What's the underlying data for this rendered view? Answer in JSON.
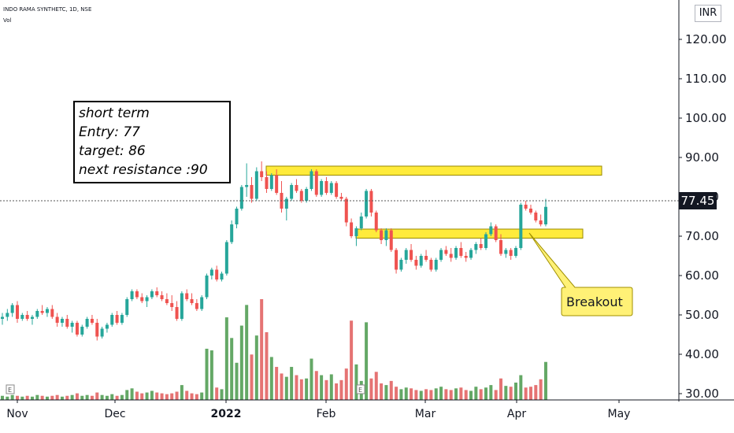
{
  "header": {
    "symbol": "INDO RAMA SYNTHETC, 1D, NSE",
    "volume_label": "Vol",
    "currency": "INR"
  },
  "colors": {
    "up": "#26a69a",
    "down": "#ef5350",
    "volume_up": "#64a866",
    "volume_down": "#e57373",
    "zone_fill": "#ffeb3b",
    "current_price_bg": "#131722"
  },
  "note": {
    "lines": [
      "short term",
      "Entry: 77",
      "target: 86",
      "next resistance :90"
    ]
  },
  "callout": {
    "text": "Breakout"
  },
  "current_price": {
    "label": "77.45",
    "value": 77.45
  },
  "chart_data": {
    "type": "candlestick",
    "y_axis": {
      "ylim": [
        30,
        125
      ],
      "ticks": [
        "30.00",
        "40.00",
        "50.00",
        "60.00",
        "70.00",
        "80.00",
        "90.00",
        "100.00",
        "110.00",
        "120.00"
      ]
    },
    "x_axis": {
      "labels": [
        "Nov",
        "Dec",
        "2022",
        "Feb",
        "Mar",
        "Apr",
        "May"
      ]
    },
    "zones": [
      {
        "name": "resistance",
        "low": 85.5,
        "high": 87.8
      },
      {
        "name": "support",
        "low": 69.5,
        "high": 71.8
      }
    ],
    "candles": [
      [
        49.0,
        50.5,
        47.5,
        49.5
      ],
      [
        49.5,
        51.5,
        48.5,
        50.5
      ],
      [
        50.5,
        53.0,
        49.5,
        52.5
      ],
      [
        52.5,
        53.5,
        48.0,
        49.0
      ],
      [
        49.0,
        50.5,
        48.5,
        50.0
      ],
      [
        50.0,
        51.0,
        48.5,
        49.0
      ],
      [
        49.0,
        50.0,
        47.5,
        49.5
      ],
      [
        49.5,
        51.5,
        49.0,
        51.0
      ],
      [
        51.0,
        52.5,
        50.0,
        50.5
      ],
      [
        50.5,
        52.0,
        49.5,
        51.5
      ],
      [
        51.5,
        52.5,
        49.0,
        49.5
      ],
      [
        49.5,
        50.5,
        47.0,
        48.0
      ],
      [
        48.0,
        49.5,
        47.0,
        49.0
      ],
      [
        49.0,
        50.0,
        46.5,
        47.0
      ],
      [
        47.0,
        48.5,
        45.5,
        48.0
      ],
      [
        48.0,
        48.5,
        44.5,
        45.0
      ],
      [
        45.0,
        47.5,
        44.5,
        47.0
      ],
      [
        47.0,
        49.5,
        46.5,
        49.0
      ],
      [
        49.0,
        50.0,
        47.5,
        48.0
      ],
      [
        48.0,
        49.0,
        43.5,
        44.5
      ],
      [
        44.5,
        47.0,
        44.0,
        46.5
      ],
      [
        46.5,
        48.0,
        45.5,
        47.5
      ],
      [
        47.5,
        50.5,
        47.0,
        50.0
      ],
      [
        50.0,
        51.0,
        47.5,
        48.0
      ],
      [
        48.0,
        50.5,
        47.5,
        50.0
      ],
      [
        50.0,
        54.5,
        49.5,
        54.0
      ],
      [
        54.0,
        56.5,
        53.5,
        56.0
      ],
      [
        56.0,
        56.5,
        54.0,
        54.5
      ],
      [
        54.5,
        55.5,
        53.0,
        53.5
      ],
      [
        53.5,
        55.0,
        52.0,
        54.5
      ],
      [
        54.5,
        56.5,
        54.0,
        56.0
      ],
      [
        56.0,
        57.0,
        54.5,
        55.0
      ],
      [
        55.0,
        56.0,
        53.5,
        54.0
      ],
      [
        54.0,
        55.5,
        52.5,
        53.0
      ],
      [
        53.0,
        55.0,
        51.0,
        52.0
      ],
      [
        52.0,
        53.5,
        48.5,
        49.0
      ],
      [
        49.0,
        56.0,
        48.5,
        55.5
      ],
      [
        55.5,
        56.5,
        53.5,
        54.0
      ],
      [
        54.0,
        55.5,
        52.5,
        53.0
      ],
      [
        53.0,
        54.0,
        51.0,
        51.5
      ],
      [
        51.5,
        55.0,
        51.0,
        54.5
      ],
      [
        54.5,
        60.5,
        54.0,
        60.0
      ],
      [
        60.0,
        62.0,
        59.0,
        61.5
      ],
      [
        61.5,
        62.5,
        58.5,
        59.0
      ],
      [
        59.0,
        61.0,
        58.5,
        60.5
      ],
      [
        60.5,
        69.0,
        60.0,
        68.5
      ],
      [
        68.5,
        74.0,
        68.0,
        73.0
      ],
      [
        73.0,
        77.5,
        72.0,
        77.0
      ],
      [
        77.0,
        83.0,
        76.5,
        82.5
      ],
      [
        82.5,
        88.5,
        80.0,
        83.0
      ],
      [
        83.0,
        85.0,
        78.5,
        79.5
      ],
      [
        79.5,
        87.5,
        79.0,
        86.5
      ],
      [
        86.5,
        89.0,
        84.0,
        85.0
      ],
      [
        85.0,
        86.5,
        81.0,
        82.0
      ],
      [
        82.0,
        86.0,
        81.5,
        85.5
      ],
      [
        85.5,
        87.0,
        80.5,
        81.0
      ],
      [
        81.0,
        84.0,
        76.0,
        77.0
      ],
      [
        77.0,
        80.0,
        74.0,
        79.5
      ],
      [
        79.5,
        83.5,
        79.0,
        83.0
      ],
      [
        83.0,
        84.5,
        81.0,
        81.5
      ],
      [
        81.5,
        82.0,
        78.5,
        79.0
      ],
      [
        79.0,
        82.5,
        78.5,
        82.0
      ],
      [
        82.0,
        87.0,
        81.5,
        86.5
      ],
      [
        86.5,
        87.0,
        80.0,
        80.5
      ],
      [
        80.5,
        84.5,
        80.0,
        84.0
      ],
      [
        84.0,
        85.0,
        80.5,
        81.0
      ],
      [
        81.0,
        84.0,
        80.5,
        83.5
      ],
      [
        83.5,
        84.0,
        79.5,
        80.0
      ],
      [
        80.0,
        81.0,
        79.0,
        79.5
      ],
      [
        79.5,
        80.0,
        72.5,
        73.5
      ],
      [
        73.5,
        74.5,
        69.5,
        70.0
      ],
      [
        70.0,
        72.5,
        67.5,
        72.0
      ],
      [
        72.0,
        76.0,
        71.5,
        75.0
      ],
      [
        75.0,
        82.0,
        74.5,
        81.5
      ],
      [
        81.5,
        82.0,
        75.0,
        76.0
      ],
      [
        76.0,
        76.5,
        71.0,
        71.5
      ],
      [
        71.5,
        72.0,
        68.0,
        69.0
      ],
      [
        69.0,
        72.0,
        67.5,
        71.5
      ],
      [
        71.5,
        72.0,
        66.0,
        66.5
      ],
      [
        66.5,
        67.0,
        60.5,
        61.5
      ],
      [
        61.5,
        64.5,
        61.0,
        64.0
      ],
      [
        64.0,
        67.0,
        63.0,
        66.5
      ],
      [
        66.5,
        68.0,
        63.5,
        64.0
      ],
      [
        64.0,
        65.0,
        61.5,
        62.5
      ],
      [
        62.5,
        65.5,
        62.0,
        65.0
      ],
      [
        65.0,
        66.5,
        63.5,
        64.0
      ],
      [
        64.0,
        64.5,
        61.0,
        61.5
      ],
      [
        61.5,
        64.5,
        61.0,
        64.0
      ],
      [
        64.0,
        67.0,
        63.5,
        66.5
      ],
      [
        66.5,
        67.5,
        65.0,
        65.5
      ],
      [
        65.5,
        67.0,
        63.5,
        64.5
      ],
      [
        64.5,
        67.5,
        64.0,
        67.0
      ],
      [
        67.0,
        68.5,
        64.5,
        65.0
      ],
      [
        65.0,
        66.0,
        63.5,
        64.5
      ],
      [
        64.5,
        67.0,
        64.0,
        66.5
      ],
      [
        66.5,
        68.5,
        65.5,
        68.0
      ],
      [
        68.0,
        69.5,
        66.5,
        67.0
      ],
      [
        67.0,
        71.0,
        66.5,
        70.5
      ],
      [
        70.5,
        73.5,
        70.0,
        72.5
      ],
      [
        72.5,
        73.0,
        68.5,
        69.0
      ],
      [
        69.0,
        70.5,
        65.0,
        65.5
      ],
      [
        65.5,
        67.0,
        64.5,
        66.5
      ],
      [
        66.5,
        67.0,
        64.0,
        65.0
      ],
      [
        65.0,
        67.5,
        64.5,
        67.0
      ],
      [
        67.0,
        78.5,
        66.5,
        78.0
      ],
      [
        78.0,
        79.0,
        76.5,
        77.0
      ],
      [
        77.0,
        78.0,
        75.5,
        76.0
      ],
      [
        76.0,
        76.5,
        73.5,
        74.0
      ],
      [
        74.0,
        75.5,
        72.5,
        73.0
      ],
      [
        73.0,
        79.5,
        72.5,
        77.45
      ]
    ],
    "volume": [
      0.5,
      0.4,
      0.6,
      0.5,
      0.4,
      0.5,
      0.4,
      0.6,
      0.5,
      0.4,
      0.5,
      0.6,
      0.4,
      0.5,
      0.6,
      0.8,
      0.5,
      0.6,
      0.5,
      0.9,
      0.6,
      0.5,
      0.7,
      0.5,
      0.6,
      1.2,
      1.4,
      1.0,
      0.8,
      0.9,
      1.1,
      0.9,
      0.8,
      0.7,
      0.8,
      1.0,
      1.8,
      1.1,
      0.8,
      0.7,
      0.9,
      6.2,
      6.0,
      1.5,
      1.3,
      10.0,
      7.5,
      4.5,
      9.0,
      11.5,
      5.5,
      7.8,
      12.2,
      8.2,
      5.2,
      4.0,
      3.2,
      2.8,
      4.0,
      3.0,
      2.5,
      2.6,
      5.0,
      3.5,
      3.0,
      2.4,
      3.1,
      2.0,
      2.4,
      3.8,
      9.6,
      4.3,
      2.3,
      9.4,
      2.6,
      3.4,
      2.0,
      1.8,
      2.3,
      1.6,
      1.3,
      1.5,
      1.4,
      1.2,
      1.1,
      1.3,
      1.2,
      1.4,
      1.6,
      1.3,
      1.2,
      1.4,
      1.5,
      1.2,
      1.1,
      1.6,
      1.3,
      1.5,
      1.8,
      1.2,
      2.6,
      1.7,
      1.6,
      2.1,
      3.0,
      1.5,
      1.6,
      1.8,
      2.5,
      4.6
    ]
  }
}
